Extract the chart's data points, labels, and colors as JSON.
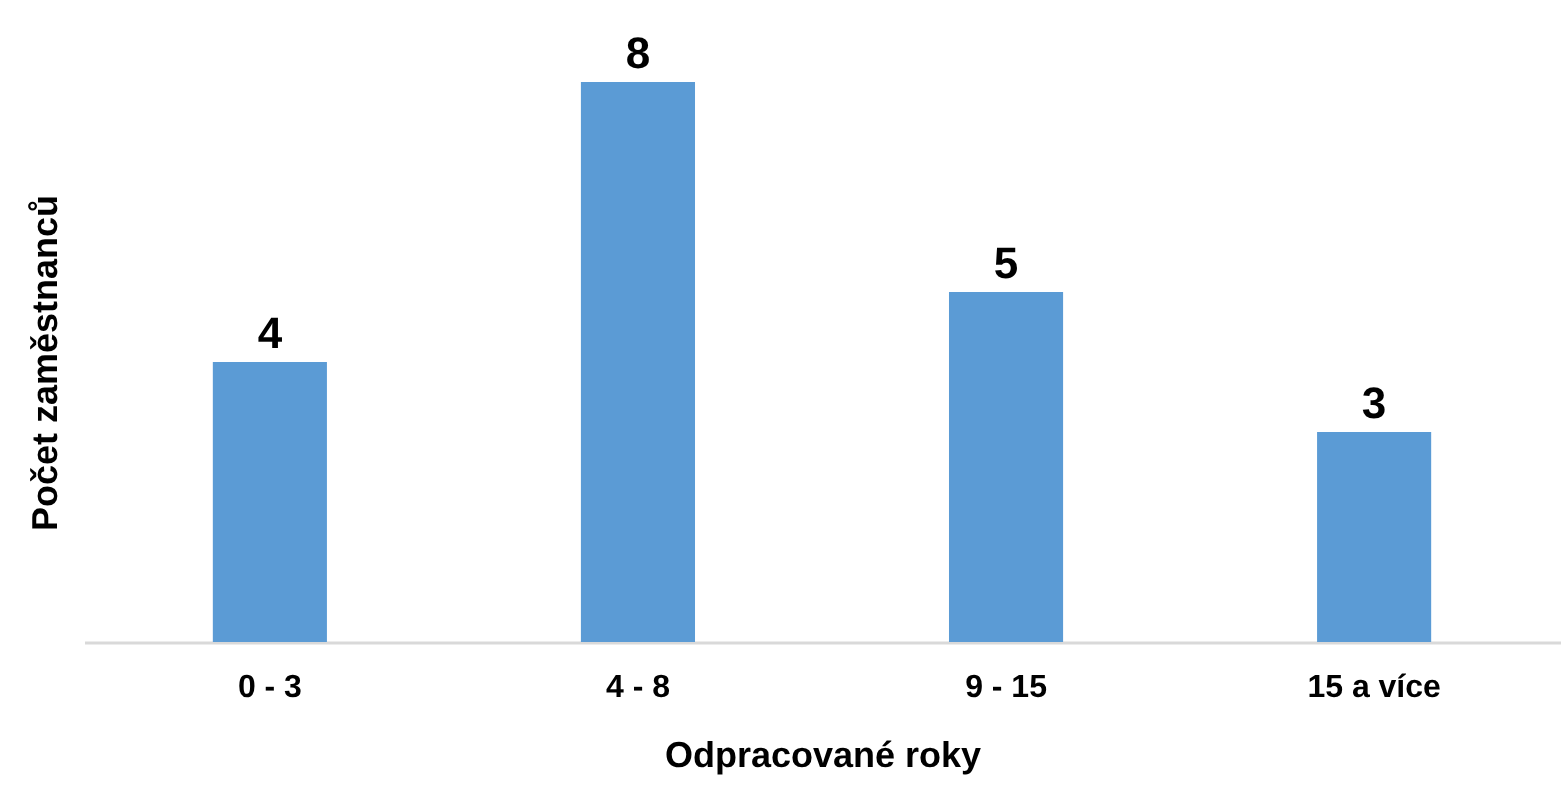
{
  "chart_data": {
    "type": "bar",
    "xlabel": "Odpracované roky",
    "ylabel": "Počet zaměstnanců",
    "categories": [
      "0 - 3",
      "4 - 8",
      "9 - 15",
      "15 a více"
    ],
    "values": [
      4,
      8,
      5,
      3
    ],
    "color": "#5b9bd5",
    "data_labels": true,
    "grid": false
  }
}
